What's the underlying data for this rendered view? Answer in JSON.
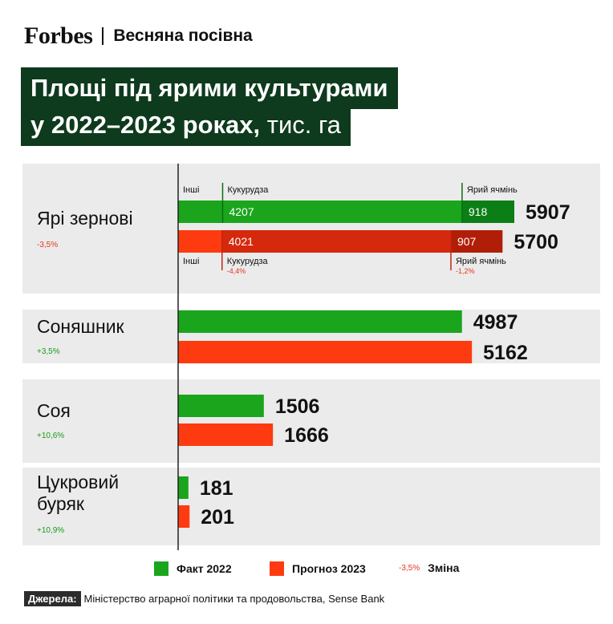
{
  "header": {
    "brand": "Forbes",
    "section": "Весняна посівна"
  },
  "title": {
    "line1": "Площі під ярими культурами",
    "line2": "у 2022–2023 роках,",
    "unit": "тис. га"
  },
  "colors": {
    "fact": "#1aa51d",
    "forecast": "#fe3b10",
    "fact_dark": "#0b7f16",
    "forecast_dark": "#d5290d",
    "band": "#ebebeb",
    "change_positive": "#1a9a1a",
    "change_negative": "#e8341c",
    "title_bg": "#0e3a1d"
  },
  "chart_data": {
    "type": "bar",
    "orientation": "horizontal",
    "xlim": [
      0,
      6300
    ],
    "categories": [
      "Ярі зернові",
      "Соняшник",
      "Соя",
      "Цукровий буряк"
    ],
    "category_changes": [
      "-3,5%",
      "+3,5%",
      "+10,6%",
      "+10,9%"
    ],
    "series": [
      {
        "name": "Факт 2022",
        "values": [
          5907,
          4987,
          1506,
          181
        ]
      },
      {
        "name": "Прогноз 2023",
        "values": [
          5700,
          5162,
          1666,
          201
        ]
      }
    ],
    "grain_breakdown": {
      "segment_labels": [
        "Інші",
        "Кукурудза",
        "Ярий ячмінь"
      ],
      "fact_2022": {
        "other": 782,
        "corn": 4207,
        "barley": 918
      },
      "forecast_2023": {
        "other": 772,
        "corn": 4021,
        "barley": 907
      },
      "fact_labels": [
        "4207",
        "918"
      ],
      "forecast_labels": [
        "4021",
        "907"
      ],
      "changes": {
        "corn": "-4,4%",
        "barley": "-1,2%"
      }
    }
  },
  "legend": {
    "fact": "Факт 2022",
    "forecast": "Прогноз 2023",
    "change_sample": "-3,5%",
    "change": "Зміна"
  },
  "sources": {
    "label": "Джерела:",
    "text": "Міністерство аграрної політики та продовольства, Sense Bank"
  }
}
